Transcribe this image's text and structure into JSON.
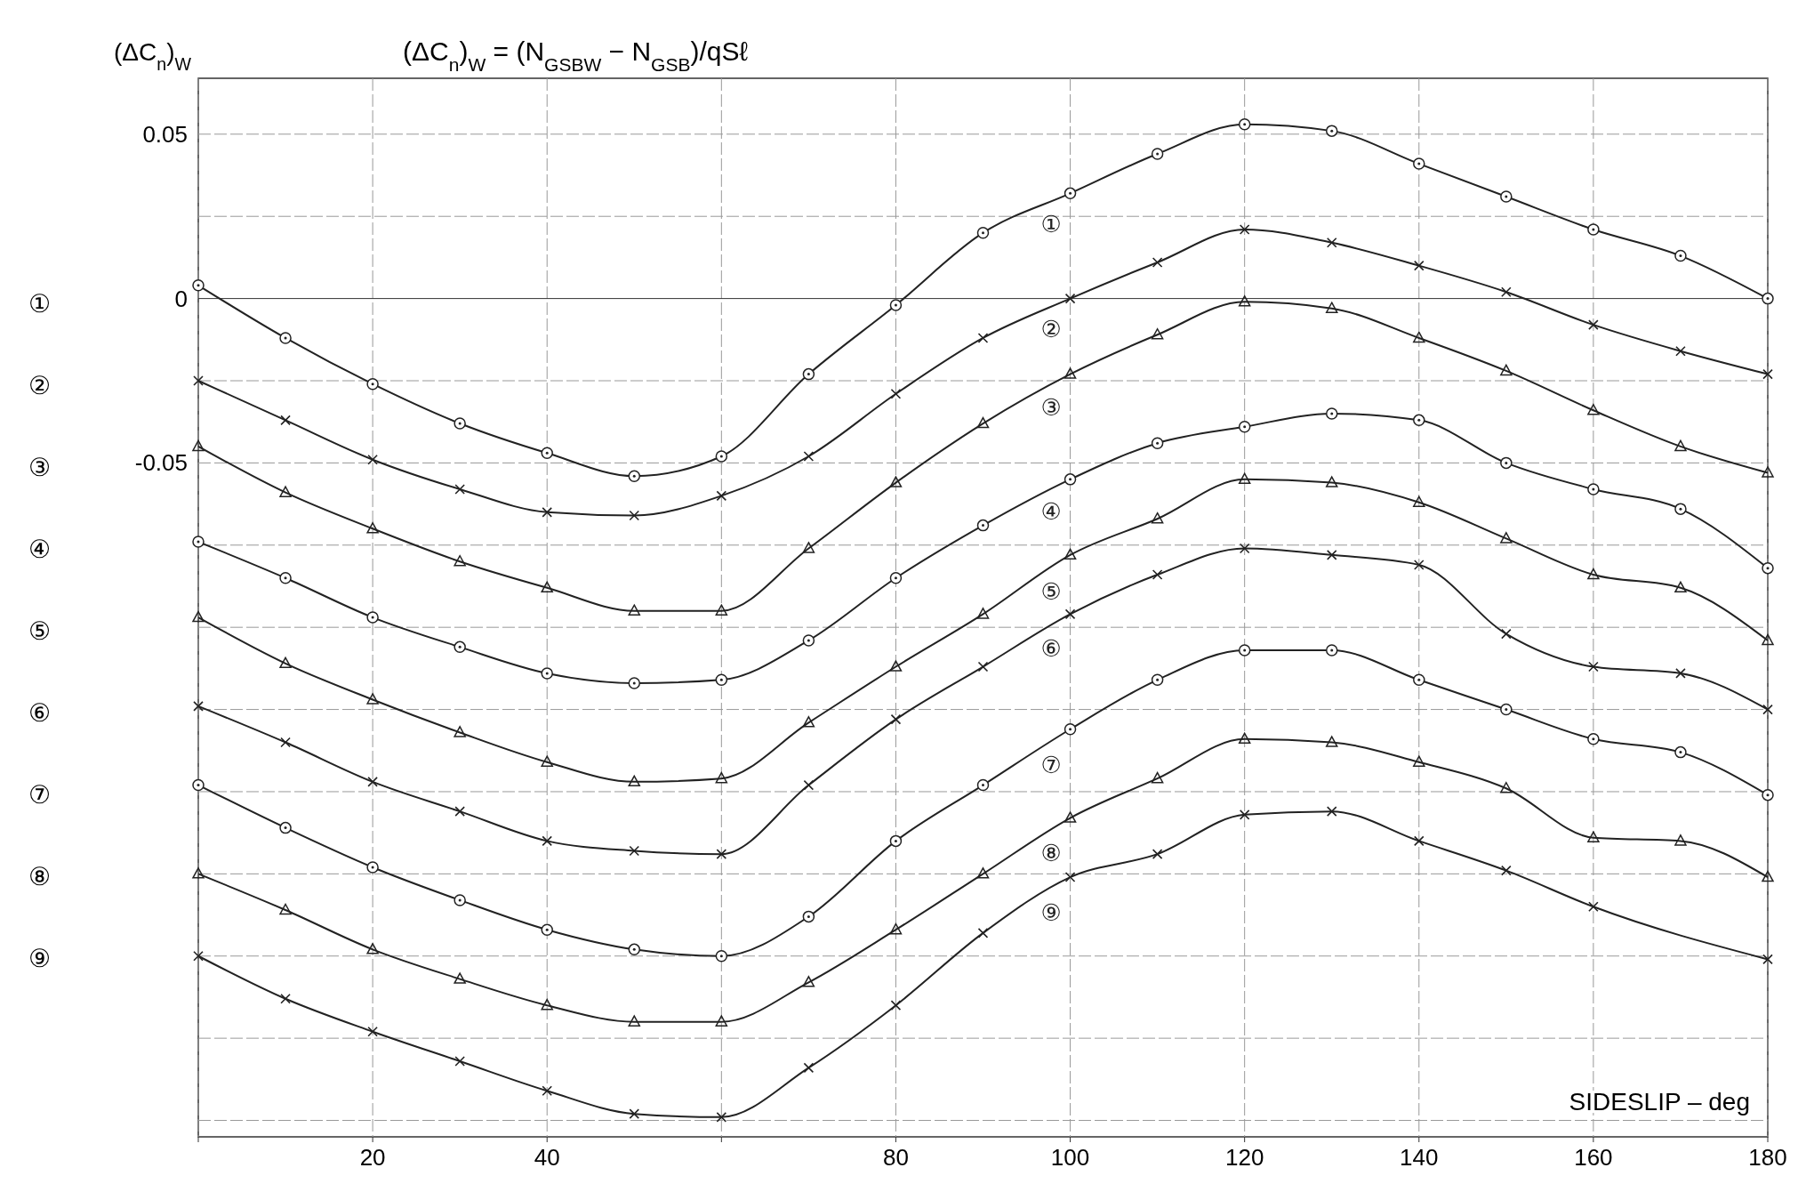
{
  "chart_data": {
    "type": "line",
    "title": "(ΔC$_{n}$)$_{W}$ = (N$_{GSBW}$ − N$_{GSB}$)/qSℓ",
    "ylabel": "(ΔC$_{n}$)$_{W}$",
    "xlabel": "SIDESLIP – deg",
    "x": [
      0,
      10,
      20,
      30,
      40,
      50,
      60,
      70,
      80,
      90,
      100,
      110,
      120,
      130,
      140,
      150,
      160,
      170,
      180
    ],
    "xlim": [
      0,
      180
    ],
    "xticks": [
      {
        "value": 0,
        "label": null
      },
      20,
      40,
      {
        "value": 60,
        "label": null
      },
      80,
      100,
      120,
      140,
      160,
      180
    ],
    "ylim": [
      -0.255,
      0.067
    ],
    "yticks": [
      0.05,
      {
        "value": 0.025,
        "label": null
      },
      0,
      {
        "value": -0.025,
        "label": null
      },
      -0.05,
      {
        "value": -0.075,
        "label": null
      },
      {
        "value": -0.1,
        "label": null
      },
      {
        "value": -0.125,
        "label": null
      },
      {
        "value": -0.15,
        "label": null
      },
      {
        "value": -0.175,
        "label": null
      },
      {
        "value": -0.2,
        "label": null
      },
      {
        "value": -0.225,
        "label": null
      },
      {
        "value": -0.25,
        "label": null
      }
    ],
    "annotations": [
      "①",
      "②",
      "③",
      "④",
      "⑤",
      "⑥",
      "⑦",
      "⑧",
      "⑨"
    ],
    "grid": true,
    "line_style": "solid",
    "series": [
      {
        "name": "①",
        "color": "#222222",
        "marker": "circle",
        "values": [
          0.004,
          -0.012,
          -0.026,
          -0.038,
          -0.047,
          -0.054,
          -0.048,
          -0.023,
          -0.002,
          0.02,
          0.032,
          0.044,
          0.053,
          0.051,
          0.041,
          0.031,
          0.021,
          0.013,
          0.0
        ]
      },
      {
        "name": "②",
        "color": "#222222",
        "marker": "cross",
        "values": [
          -0.025,
          -0.037,
          -0.049,
          -0.058,
          -0.065,
          -0.066,
          -0.06,
          -0.048,
          -0.029,
          -0.012,
          0.0,
          0.011,
          0.021,
          0.017,
          0.01,
          0.002,
          -0.008,
          -0.016,
          -0.023
        ]
      },
      {
        "name": "③",
        "color": "#222222",
        "marker": "triangle",
        "values": [
          -0.045,
          -0.059,
          -0.07,
          -0.08,
          -0.088,
          -0.095,
          -0.095,
          -0.076,
          -0.056,
          -0.038,
          -0.023,
          -0.011,
          -0.001,
          -0.003,
          -0.012,
          -0.022,
          -0.034,
          -0.045,
          -0.053
        ]
      },
      {
        "name": "④",
        "color": "#222222",
        "marker": "circle",
        "values": [
          -0.074,
          -0.085,
          -0.097,
          -0.106,
          -0.114,
          -0.117,
          -0.116,
          -0.104,
          -0.085,
          -0.069,
          -0.055,
          -0.044,
          -0.039,
          -0.035,
          -0.037,
          -0.05,
          -0.058,
          -0.064,
          -0.082
        ]
      },
      {
        "name": "⑤",
        "color": "#222222",
        "marker": "triangle",
        "values": [
          -0.097,
          -0.111,
          -0.122,
          -0.132,
          -0.141,
          -0.147,
          -0.146,
          -0.129,
          -0.112,
          -0.096,
          -0.078,
          -0.067,
          -0.055,
          -0.056,
          -0.062,
          -0.073,
          -0.084,
          -0.088,
          -0.104
        ]
      },
      {
        "name": "⑥",
        "color": "#222222",
        "marker": "cross",
        "values": [
          -0.124,
          -0.135,
          -0.147,
          -0.156,
          -0.165,
          -0.168,
          -0.169,
          -0.148,
          -0.128,
          -0.112,
          -0.096,
          -0.084,
          -0.076,
          -0.078,
          -0.081,
          -0.102,
          -0.112,
          -0.114,
          -0.125
        ]
      },
      {
        "name": "⑦",
        "color": "#222222",
        "marker": "circle",
        "values": [
          -0.148,
          -0.161,
          -0.173,
          -0.183,
          -0.192,
          -0.198,
          -0.2,
          -0.188,
          -0.165,
          -0.148,
          -0.131,
          -0.116,
          -0.107,
          -0.107,
          -0.116,
          -0.125,
          -0.134,
          -0.138,
          -0.151
        ]
      },
      {
        "name": "⑧",
        "color": "#222222",
        "marker": "triangle",
        "values": [
          -0.175,
          -0.186,
          -0.198,
          -0.207,
          -0.215,
          -0.22,
          -0.22,
          -0.208,
          -0.192,
          -0.175,
          -0.158,
          -0.146,
          -0.134,
          -0.135,
          -0.141,
          -0.149,
          -0.164,
          -0.165,
          -0.176
        ]
      },
      {
        "name": "⑨",
        "color": "#222222",
        "marker": "cross",
        "x": [
          0,
          10,
          20,
          30,
          40,
          50,
          60,
          70,
          80,
          90,
          100,
          110,
          120,
          130,
          140,
          150,
          160,
          180
        ],
        "values": [
          -0.2,
          -0.213,
          -0.223,
          -0.232,
          -0.241,
          -0.248,
          -0.249,
          -0.234,
          -0.215,
          -0.193,
          -0.176,
          -0.169,
          -0.157,
          -0.156,
          -0.165,
          -0.174,
          -0.185,
          -0.201
        ]
      }
    ]
  }
}
